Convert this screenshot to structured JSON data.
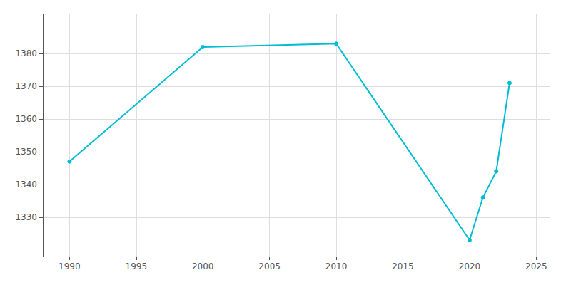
{
  "chart_data": {
    "type": "line",
    "x": [
      1990,
      2000,
      2010,
      2020,
      2021,
      2022,
      2023
    ],
    "values": [
      1347,
      1382,
      1383,
      1323,
      1336,
      1344,
      1371
    ],
    "color": "#00BCD4",
    "marker": "circle",
    "xlim": [
      1988,
      2026
    ],
    "xticks": [
      1990,
      1995,
      2000,
      2005,
      2010,
      2015,
      2020,
      2025
    ],
    "ylim": [
      1318,
      1392
    ],
    "yticks": [
      1330,
      1340,
      1350,
      1360,
      1370,
      1380
    ],
    "grid": true
  }
}
